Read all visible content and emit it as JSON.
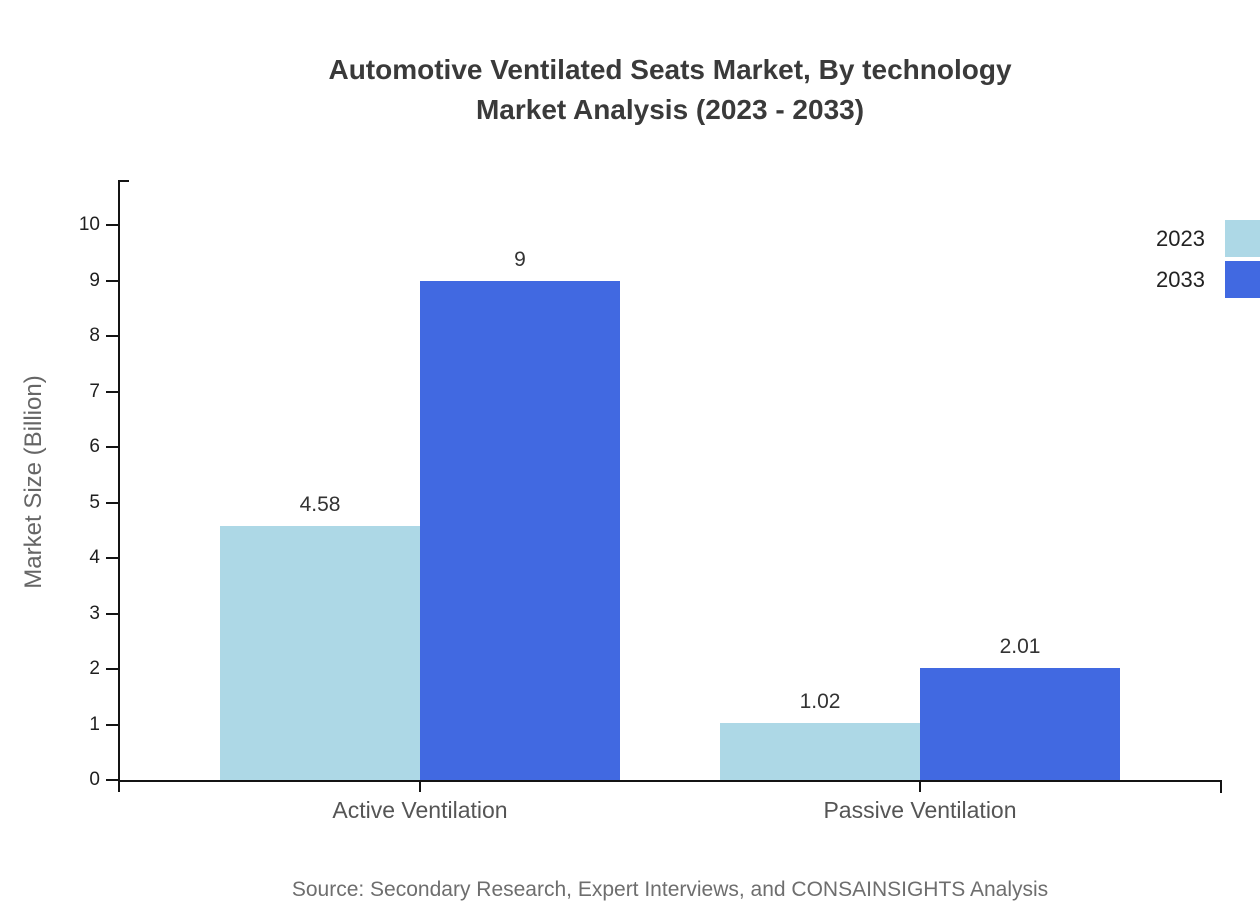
{
  "title": {
    "line1": "Automotive Ventilated Seats Market, By technology",
    "line2": "Market Analysis (2023 - 2033)"
  },
  "source": "Source: Secondary Research, Expert Interviews, and CONSAINSIGHTS Analysis",
  "chart_data": {
    "type": "bar",
    "title": "Automotive Ventilated Seats Market, By technology Market Analysis (2023 - 2033)",
    "categories": [
      "Active Ventilation",
      "Passive Ventilation"
    ],
    "series": [
      {
        "name": "2023",
        "color": "#ADD8E6",
        "values": [
          4.58,
          1.02
        ]
      },
      {
        "name": "2033",
        "color": "#4169E1",
        "values": [
          9,
          2.01
        ]
      }
    ],
    "value_labels": [
      [
        "4.58",
        "1.02"
      ],
      [
        "9",
        "2.01"
      ]
    ],
    "xlabel": "",
    "ylabel": "Market Size (Billion)",
    "ylim": [
      0,
      10
    ],
    "ytick_step": 1,
    "grid": false,
    "legend_position": "top-right",
    "axis_color": "#141414",
    "background_color": "#ffffff"
  }
}
